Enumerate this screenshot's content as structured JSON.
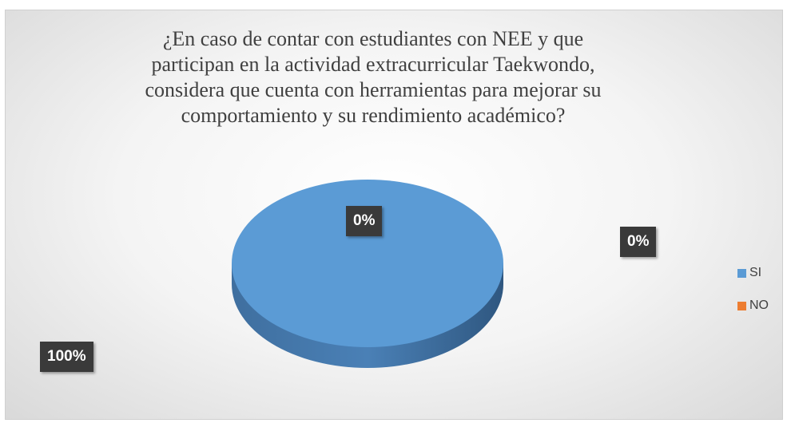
{
  "chart_data": {
    "type": "pie",
    "title": "¿En caso de contar con estudiantes con NEE y que participan en la actividad extracurricular Taekwondo, considera que cuenta con herramientas para mejorar su comportamiento y su rendimiento académico?",
    "categories": [
      "SI",
      "NO",
      null
    ],
    "values": [
      100,
      0,
      0
    ],
    "value_labels": [
      "100%",
      "0%",
      "0%"
    ],
    "colors": [
      "#5b9bd5",
      "#ed7d31",
      "#a5a5a5"
    ],
    "legend": "right"
  }
}
